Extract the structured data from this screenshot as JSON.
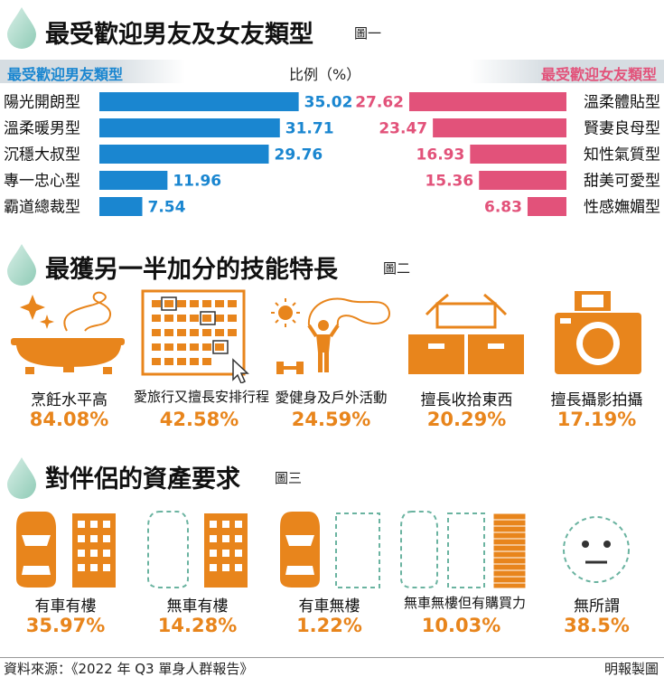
{
  "chart_data": [
    {
      "type": "bar",
      "title": "最受歡迎男友及女友類型",
      "figure_tag": "圖一",
      "ylabel": "比例（%）",
      "series": [
        {
          "name": "最受歡迎男友類型",
          "color": "#1a86d0",
          "categories": [
            "陽光開朗型",
            "溫柔暖男型",
            "沉穩大叔型",
            "專一忠心型",
            "霸道總裁型"
          ],
          "values": [
            35.02,
            31.71,
            29.76,
            11.96,
            7.54
          ]
        },
        {
          "name": "最受歡迎女友類型",
          "color": "#e2527a",
          "categories": [
            "溫柔體貼型",
            "賢妻良母型",
            "知性氣質型",
            "甜美可愛型",
            "性感嫵媚型"
          ],
          "values": [
            27.62,
            23.47,
            16.93,
            15.36,
            6.83
          ]
        }
      ]
    },
    {
      "type": "bar",
      "title": "最獲另一半加分的技能特長",
      "figure_tag": "圖二",
      "categories": [
        "烹飪水平高",
        "愛旅行又擅長安排行程",
        "愛健身及戶外活動",
        "擅長收拾東西",
        "擅長攝影拍攝"
      ],
      "values": [
        84.08,
        42.58,
        24.59,
        20.29,
        17.19
      ],
      "value_labels": [
        "84.08%",
        "42.58%",
        "24.59%",
        "20.29%",
        "17.19%"
      ],
      "icons": [
        "cooking-pot-icon",
        "calendar-schedule-icon",
        "fitness-outdoor-icon",
        "storage-boxes-icon",
        "camera-icon"
      ]
    },
    {
      "type": "bar",
      "title": "對伴侶的資產要求",
      "figure_tag": "圖三",
      "categories": [
        "有車有樓",
        "無車有樓",
        "有車無樓",
        "無車無樓但有購買力",
        "無所謂"
      ],
      "values": [
        35.97,
        14.28,
        1.22,
        10.03,
        38.5
      ],
      "value_labels": [
        "35.97%",
        "14.28%",
        "1.22%",
        "10.03%",
        "38.5%"
      ],
      "icons": [
        "car-building-icon",
        "no-car-building-icon",
        "car-no-building-icon",
        "coins-stack-icon",
        "indifferent-face-icon"
      ]
    }
  ],
  "colors": {
    "male": "#1a86d0",
    "female": "#e2527a",
    "accent": "#e8851c",
    "drop": "#a9d8c8"
  },
  "footer": {
    "source": "資料來源：《2022 年 Q3 單身人群報告》",
    "credit": "明報製圖"
  }
}
